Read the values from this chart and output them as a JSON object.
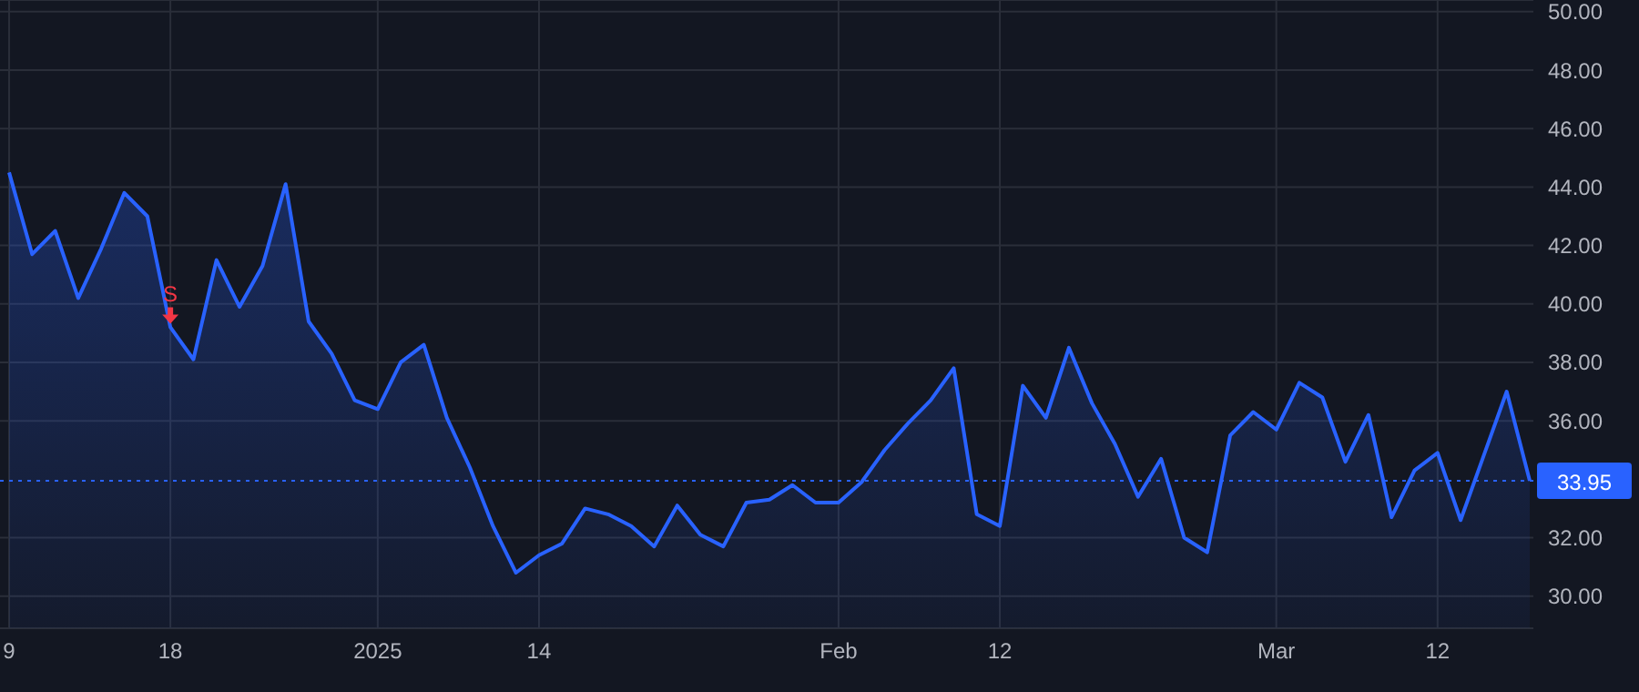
{
  "chart_data": {
    "type": "area",
    "categories": [
      "9",
      null,
      null,
      null,
      null,
      null,
      null,
      "18",
      null,
      null,
      null,
      null,
      null,
      null,
      null,
      null,
      "2025",
      null,
      null,
      null,
      null,
      null,
      null,
      "14",
      null,
      null,
      null,
      null,
      null,
      null,
      null,
      null,
      null,
      null,
      null,
      null,
      "Feb",
      null,
      null,
      null,
      null,
      null,
      null,
      "12",
      null,
      null,
      null,
      null,
      null,
      null,
      null,
      null,
      null,
      null,
      null,
      "Mar",
      null,
      null,
      null,
      null,
      null,
      null,
      "12",
      null,
      null,
      null,
      null
    ],
    "series": [
      {
        "color": "#2962ff",
        "values": [
          44.5,
          41.7,
          42.5,
          40.2,
          41.9,
          43.8,
          43.0,
          39.2,
          38.1,
          41.5,
          39.9,
          41.3,
          44.1,
          39.4,
          38.3,
          36.7,
          36.4,
          38.0,
          38.6,
          36.1,
          34.4,
          32.4,
          30.8,
          31.4,
          31.8,
          33.0,
          32.8,
          32.4,
          31.7,
          33.1,
          32.1,
          31.7,
          33.2,
          33.3,
          33.8,
          33.2,
          33.2,
          33.9,
          35.0,
          35.9,
          36.7,
          37.8,
          32.8,
          32.4,
          37.2,
          36.1,
          38.5,
          36.6,
          35.2,
          33.4,
          34.7,
          32.0,
          31.5,
          35.5,
          36.3,
          35.7,
          37.3,
          36.8,
          34.6,
          36.2,
          32.7,
          34.3,
          34.9,
          32.6,
          34.8,
          37.0,
          33.95
        ]
      }
    ],
    "ylim": [
      28.9,
      50.4
    ],
    "yticks": [
      {
        "value": 30,
        "label": "30.00"
      },
      {
        "value": 32,
        "label": "32.00"
      },
      {
        "value": 36,
        "label": "36.00"
      },
      {
        "value": 38,
        "label": "38.00"
      },
      {
        "value": 40,
        "label": "40.00"
      },
      {
        "value": 42,
        "label": "42.00"
      },
      {
        "value": 44,
        "label": "44.00"
      },
      {
        "value": 46,
        "label": "46.00"
      },
      {
        "value": 48,
        "label": "48.00"
      },
      {
        "value": 50,
        "label": "50.00"
      }
    ],
    "ref_lines": [
      {
        "axis": "y",
        "value": 33.95,
        "label": "33.95",
        "color": "#2962ff",
        "line_style": "dotted"
      }
    ],
    "annotations": [
      {
        "text": "S",
        "x": "18",
        "y": 39.2
      }
    ],
    "grid": true
  }
}
